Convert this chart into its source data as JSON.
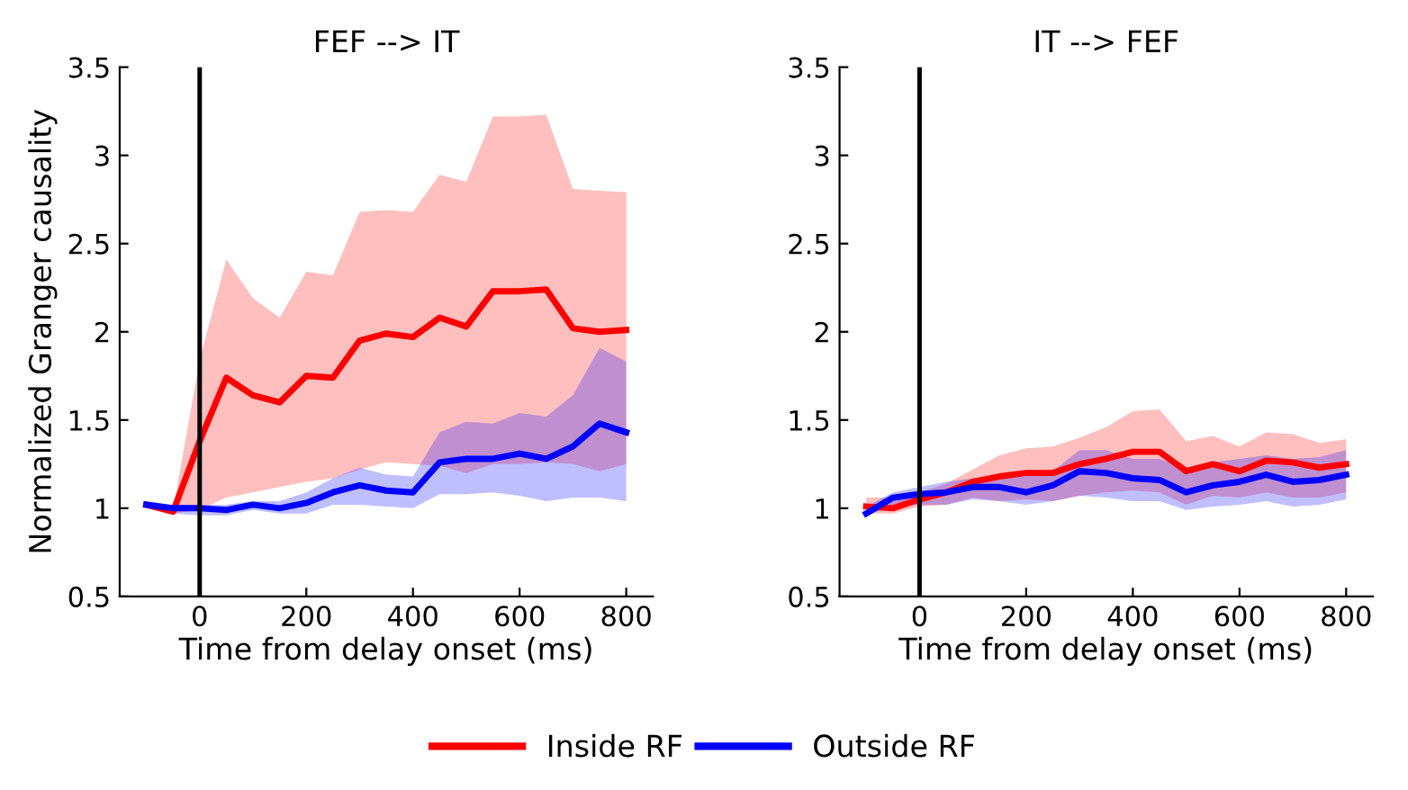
{
  "chart_data": [
    {
      "type": "line",
      "title": "FEF --> IT",
      "xlabel": "Time from delay onset (ms)",
      "ylabel": "Normalized Granger causality",
      "x": [
        -100,
        -50,
        0,
        50,
        100,
        150,
        200,
        250,
        300,
        350,
        400,
        450,
        500,
        550,
        600,
        650,
        700,
        750,
        800
      ],
      "xlim": [
        -150,
        850
      ],
      "xticks": [
        0,
        200,
        400,
        600,
        800
      ],
      "ylim": [
        0.5,
        3.5
      ],
      "yticks": [
        0.5,
        1,
        1.5,
        2,
        2.5,
        3,
        3.5
      ],
      "grid": false,
      "legend": "bottom",
      "marker": "none",
      "line_style": "solid",
      "ref_lines": [
        {
          "axis": "x",
          "value": 0,
          "color": "#000000"
        }
      ],
      "series": [
        {
          "name": "Inside RF",
          "color": "#ff0000",
          "values": [
            1.02,
            0.98,
            1.38,
            1.74,
            1.64,
            1.6,
            1.75,
            1.74,
            1.95,
            1.99,
            1.97,
            2.08,
            2.03,
            2.23,
            2.23,
            2.24,
            2.02,
            2.0,
            2.01
          ],
          "upper": [
            1.04,
            0.99,
            1.84,
            2.41,
            2.19,
            2.08,
            2.34,
            2.32,
            2.68,
            2.69,
            2.68,
            2.89,
            2.85,
            3.22,
            3.22,
            3.23,
            2.81,
            2.8,
            2.79
          ],
          "lower": [
            1.01,
            0.97,
            0.99,
            1.06,
            1.09,
            1.12,
            1.15,
            1.17,
            1.22,
            1.26,
            1.25,
            1.24,
            1.2,
            1.25,
            1.25,
            1.26,
            1.25,
            1.21,
            1.25
          ]
        },
        {
          "name": "Outside RF",
          "color": "#0000ff",
          "values": [
            1.02,
            1.0,
            1.0,
            0.99,
            1.02,
            1.0,
            1.03,
            1.09,
            1.13,
            1.1,
            1.09,
            1.26,
            1.28,
            1.28,
            1.31,
            1.28,
            1.35,
            1.48,
            1.43
          ],
          "upper": [
            1.04,
            1.02,
            1.02,
            1.02,
            1.04,
            1.04,
            1.09,
            1.17,
            1.23,
            1.19,
            1.18,
            1.43,
            1.49,
            1.48,
            1.54,
            1.52,
            1.64,
            1.91,
            1.83
          ],
          "lower": [
            1.0,
            0.97,
            0.96,
            0.96,
            0.99,
            0.97,
            0.97,
            1.02,
            1.02,
            1.01,
            1.0,
            1.08,
            1.08,
            1.09,
            1.07,
            1.04,
            1.06,
            1.06,
            1.04
          ]
        }
      ]
    },
    {
      "type": "line",
      "title": "IT --> FEF",
      "xlabel": "Time from delay onset (ms)",
      "x": [
        -100,
        -50,
        0,
        50,
        100,
        150,
        200,
        250,
        300,
        350,
        400,
        450,
        500,
        550,
        600,
        650,
        700,
        750,
        800
      ],
      "xlim": [
        -150,
        850
      ],
      "xticks": [
        0,
        200,
        400,
        600,
        800
      ],
      "ylim": [
        0.5,
        3.5
      ],
      "yticks": [
        0.5,
        1,
        1.5,
        2,
        2.5,
        3,
        3.5
      ],
      "grid": false,
      "marker": "none",
      "line_style": "solid",
      "ref_lines": [
        {
          "axis": "x",
          "value": 0,
          "color": "#000000"
        }
      ],
      "series": [
        {
          "color": "#ff0000",
          "values": [
            1.01,
            1.0,
            1.05,
            1.09,
            1.15,
            1.18,
            1.2,
            1.2,
            1.25,
            1.28,
            1.32,
            1.32,
            1.21,
            1.25,
            1.21,
            1.27,
            1.26,
            1.23,
            1.25
          ],
          "upper": [
            1.06,
            1.06,
            1.09,
            1.14,
            1.22,
            1.3,
            1.34,
            1.35,
            1.4,
            1.46,
            1.55,
            1.56,
            1.38,
            1.41,
            1.35,
            1.43,
            1.42,
            1.37,
            1.39
          ],
          "lower": [
            0.97,
            0.97,
            1.01,
            1.02,
            1.06,
            1.04,
            1.05,
            1.04,
            1.07,
            1.09,
            1.1,
            1.09,
            1.02,
            1.07,
            1.06,
            1.09,
            1.06,
            1.06,
            1.09
          ]
        },
        {
          "color": "#0000ff",
          "values": [
            0.97,
            1.06,
            1.08,
            1.09,
            1.12,
            1.12,
            1.09,
            1.13,
            1.21,
            1.2,
            1.17,
            1.16,
            1.09,
            1.13,
            1.15,
            1.19,
            1.15,
            1.16,
            1.19
          ],
          "upper": [
            1.01,
            1.09,
            1.12,
            1.15,
            1.17,
            1.17,
            1.18,
            1.21,
            1.33,
            1.33,
            1.28,
            1.28,
            1.23,
            1.26,
            1.28,
            1.3,
            1.28,
            1.29,
            1.33
          ],
          "lower": [
            0.96,
            1.01,
            1.02,
            1.02,
            1.05,
            1.04,
            1.02,
            1.04,
            1.07,
            1.06,
            1.04,
            1.04,
            0.99,
            1.01,
            1.02,
            1.04,
            1.01,
            1.02,
            1.05
          ]
        }
      ]
    }
  ]
}
